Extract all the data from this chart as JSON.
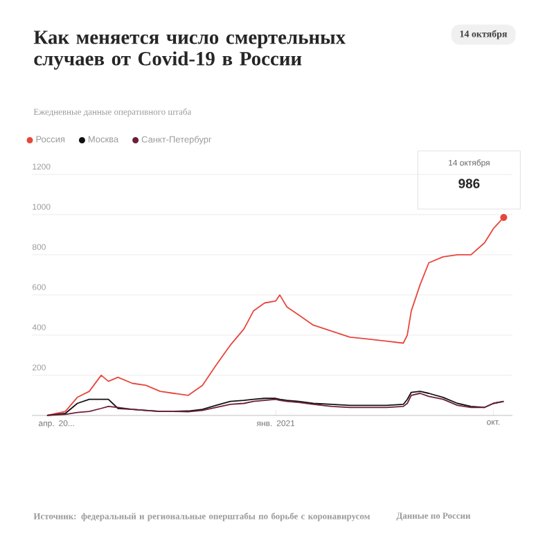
{
  "chart_data": {
    "type": "line",
    "title": "Как меняется число смертельных случаев от Covid-19 в России",
    "subtitle": "Ежедневные данные оперативного штаба",
    "x": [
      "2020-03-20",
      "2020-04-12",
      "2020-04-27",
      "2020-05-12",
      "2020-05-27",
      "2020-06-05",
      "2020-06-17",
      "2020-07-05",
      "2020-07-22",
      "2020-08-09",
      "2020-08-26",
      "2020-09-13",
      "2020-10-01",
      "2020-10-18",
      "2020-11-05",
      "2020-11-22",
      "2020-12-04",
      "2020-12-18",
      "2021-01-01",
      "2021-01-06",
      "2021-01-15",
      "2021-01-30",
      "2021-02-17",
      "2021-03-12",
      "2021-04-04",
      "2021-04-27",
      "2021-05-20",
      "2021-06-10",
      "2021-06-15",
      "2021-06-20",
      "2021-07-01",
      "2021-07-12",
      "2021-07-30",
      "2021-08-17",
      "2021-09-03",
      "2021-09-20",
      "2021-10-01",
      "2021-10-14"
    ],
    "series": [
      {
        "name": "Россия",
        "color": "#e8453c",
        "values": [
          0,
          20,
          90,
          120,
          200,
          170,
          190,
          160,
          150,
          120,
          110,
          100,
          150,
          250,
          350,
          430,
          520,
          560,
          570,
          600,
          540,
          500,
          450,
          420,
          390,
          380,
          370,
          360,
          400,
          520,
          650,
          760,
          790,
          800,
          800,
          860,
          930,
          986
        ]
      },
      {
        "name": "Москва",
        "color": "#111111",
        "values": [
          0,
          10,
          60,
          80,
          80,
          80,
          35,
          30,
          25,
          20,
          20,
          22,
          30,
          50,
          70,
          75,
          80,
          85,
          85,
          80,
          75,
          70,
          60,
          55,
          50,
          50,
          50,
          55,
          80,
          115,
          120,
          110,
          90,
          60,
          45,
          40,
          60,
          70
        ]
      },
      {
        "name": "Санкт-Петербург",
        "color": "#6b1e3a",
        "values": [
          0,
          5,
          15,
          20,
          35,
          45,
          40,
          30,
          25,
          20,
          20,
          18,
          25,
          40,
          55,
          60,
          70,
          75,
          80,
          75,
          70,
          65,
          55,
          45,
          40,
          40,
          40,
          45,
          60,
          100,
          110,
          95,
          80,
          50,
          40,
          40,
          60,
          70
        ]
      }
    ],
    "xlim": [
      "2020-03-01",
      "2021-10-25"
    ],
    "xticks": [
      {
        "value": "2020-04-01",
        "label": "апр. 20..."
      },
      {
        "value": "2021-01-01",
        "label": "янв. 2021"
      },
      {
        "value": "2021-10-01",
        "label": "окт."
      }
    ],
    "ylim": [
      0,
      1200
    ],
    "yticks": [
      {
        "value": 0,
        "label": null
      },
      200,
      400,
      600,
      800,
      1000,
      1200
    ],
    "grid": "y",
    "legend": "top left",
    "line_style": "solid",
    "annotations": [
      "14 октября",
      "14 октября",
      {
        "text": "986",
        "x": "2021-10-14",
        "y": 986
      },
      "Источник: федеральный и региональные оперштабы по борьбе с коронавирусом",
      "Данные по России"
    ]
  }
}
